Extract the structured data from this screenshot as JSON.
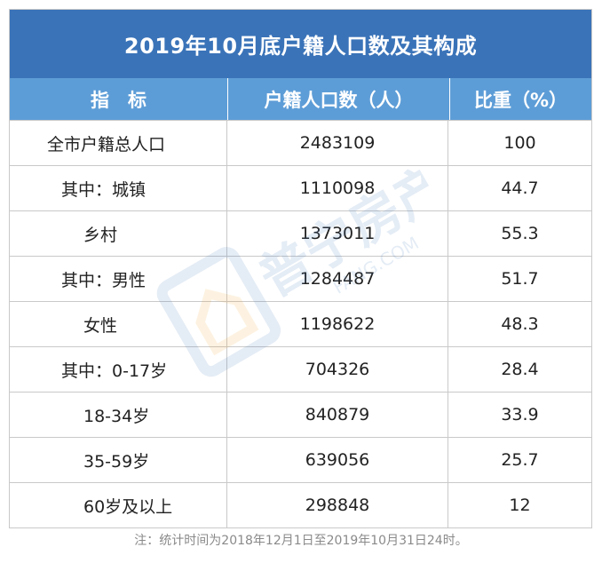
{
  "title": "2019年10月底户籍人口数及其构成",
  "header": {
    "col1": "指　标",
    "col2": "户籍人口数（人）",
    "col3": "比重（%）"
  },
  "rows": [
    {
      "label": "全市户籍总人口",
      "value": "2483109",
      "pct": "100"
    },
    {
      "label": "其中：城镇",
      "value": "1110098",
      "pct": "44.7"
    },
    {
      "label": "乡村",
      "value": "1373011",
      "pct": "55.3"
    },
    {
      "label": "其中：男性",
      "value": "1284487",
      "pct": "51.7"
    },
    {
      "label": "女性",
      "value": "1198622",
      "pct": "48.3"
    },
    {
      "label": "其中：0-17岁",
      "value": "704326",
      "pct": "28.4"
    },
    {
      "label": "18-34岁",
      "value": "840879",
      "pct": "33.9"
    },
    {
      "label": "35-59岁",
      "value": "639056",
      "pct": "25.7"
    },
    {
      "label": "60岁及以上",
      "value": "298848",
      "pct": "12"
    }
  ],
  "footnote": "注：统计时间为2018年12月1日至2019年10月31日24时。",
  "watermark": {
    "text": "普宁房产网",
    "subtext": "FANG.COM",
    "icon": "house-logo-icon"
  }
}
